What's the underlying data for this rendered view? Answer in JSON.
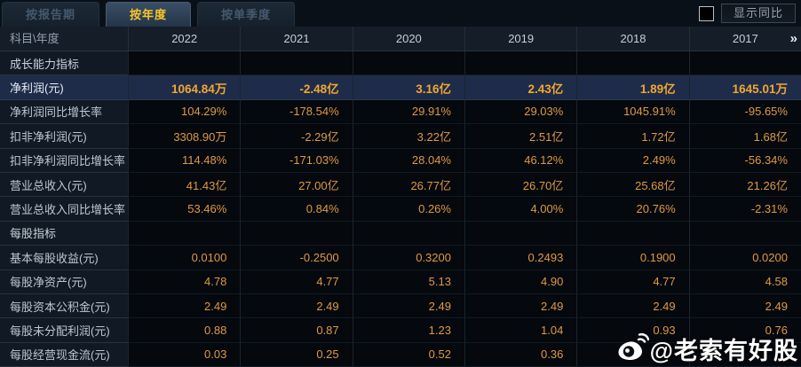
{
  "tabs": [
    {
      "label": "按报告期",
      "active": false
    },
    {
      "label": "按年度",
      "active": true
    },
    {
      "label": "按单季度",
      "active": false
    }
  ],
  "controls": {
    "show_yoy_label": "显示同比",
    "checkbox_checked": false
  },
  "table": {
    "corner_label": "科目\\年度",
    "years": [
      "2022",
      "2021",
      "2020",
      "2019",
      "2018",
      "2017"
    ],
    "more_columns_icon": "»",
    "rows": [
      {
        "type": "section",
        "label": "成长能力指标"
      },
      {
        "type": "data",
        "label": "净利润(元)",
        "highlight": true,
        "values": [
          "1064.84万",
          "-2.48亿",
          "3.16亿",
          "2.43亿",
          "1.89亿",
          "1645.01万"
        ]
      },
      {
        "type": "data",
        "label": "净利润同比增长率",
        "values": [
          "104.29%",
          "-178.54%",
          "29.91%",
          "29.03%",
          "1045.91%",
          "-95.65%"
        ]
      },
      {
        "type": "data",
        "label": "扣非净利润(元)",
        "values": [
          "3308.90万",
          "-2.29亿",
          "3.22亿",
          "2.51亿",
          "1.72亿",
          "1.68亿"
        ]
      },
      {
        "type": "data",
        "label": "扣非净利润同比增长率",
        "values": [
          "114.48%",
          "-171.03%",
          "28.04%",
          "46.12%",
          "2.49%",
          "-56.34%"
        ]
      },
      {
        "type": "data",
        "label": "营业总收入(元)",
        "values": [
          "41.43亿",
          "27.00亿",
          "26.77亿",
          "26.70亿",
          "25.68亿",
          "21.26亿"
        ]
      },
      {
        "type": "data",
        "label": "营业总收入同比增长率",
        "values": [
          "53.46%",
          "0.84%",
          "0.26%",
          "4.00%",
          "20.76%",
          "-2.31%"
        ]
      },
      {
        "type": "section",
        "label": "每股指标"
      },
      {
        "type": "data",
        "label": "基本每股收益(元)",
        "values": [
          "0.0100",
          "-0.2500",
          "0.3200",
          "0.2493",
          "0.1900",
          "0.0200"
        ]
      },
      {
        "type": "data",
        "label": "每股净资产(元)",
        "values": [
          "4.78",
          "4.77",
          "5.13",
          "4.90",
          "4.77",
          "4.58"
        ]
      },
      {
        "type": "data",
        "label": "每股资本公积金(元)",
        "values": [
          "2.49",
          "2.49",
          "2.49",
          "2.49",
          "2.49",
          "2.49"
        ]
      },
      {
        "type": "data",
        "label": "每股未分配利润(元)",
        "values": [
          "0.88",
          "0.87",
          "1.23",
          "1.04",
          "0.93",
          "0.76"
        ]
      },
      {
        "type": "data",
        "label": "每股经营现金流(元)",
        "values": [
          "0.03",
          "0.25",
          "0.52",
          "0.36",
          "",
          ""
        ]
      }
    ]
  },
  "watermark": {
    "text": "@老索有好股",
    "icon": "weibo-icon"
  },
  "colors": {
    "background": "#070c13",
    "highlight_row": "#1e2c4a",
    "value_text": "#dd9a46",
    "highlight_value_text": "#f2a72f",
    "active_tab_text": "#f8c62c",
    "label_column_bg": "#111a24",
    "header_row_bg": "#141d28"
  }
}
